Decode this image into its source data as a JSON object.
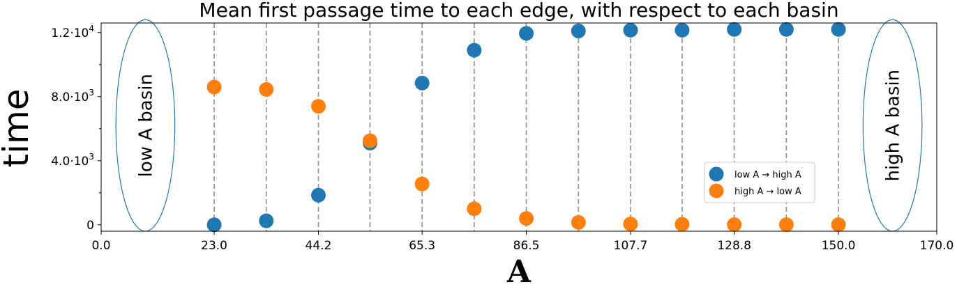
{
  "chart_data": {
    "type": "scatter",
    "title": "Mean first passage time to each edge, with respect to each basin",
    "xlabel": "A",
    "ylabel": "time",
    "xlim": [
      0,
      170
    ],
    "ylim": [
      -400,
      12600
    ],
    "x_ticks": [
      {
        "value": 0,
        "label": "0.0"
      },
      {
        "value": 23.0,
        "label": "23.0"
      },
      {
        "value": 44.2,
        "label": "44.2"
      },
      {
        "value": 65.3,
        "label": "65.3"
      },
      {
        "value": 86.5,
        "label": "86.5"
      },
      {
        "value": 107.7,
        "label": "107.7"
      },
      {
        "value": 128.8,
        "label": "128.8"
      },
      {
        "value": 150.0,
        "label": "150.0"
      },
      {
        "value": 170.0,
        "label": "170.0"
      }
    ],
    "y_ticks": [
      {
        "value": 0,
        "base": "0",
        "exp": ""
      },
      {
        "value": 4000,
        "base": "4.0·10",
        "exp": "3"
      },
      {
        "value": 8000,
        "base": "8.0·10",
        "exp": "3"
      },
      {
        "value": 12000,
        "base": "1.2·10",
        "exp": "4"
      }
    ],
    "y_minor_ticks": [
      2000,
      6000,
      10000
    ],
    "vlines": [
      23.0,
      33.6,
      44.2,
      54.7,
      65.3,
      75.9,
      86.5,
      97.1,
      107.7,
      118.2,
      128.8,
      139.4,
      150.0
    ],
    "basins": [
      {
        "label": "low A basin",
        "center_x": 9,
        "half_width_x": 6,
        "center_y": 6200,
        "half_height_y": 6600
      },
      {
        "label": "high A basin",
        "center_x": 161,
        "half_width_x": 6,
        "center_y": 6200,
        "half_height_y": 6600
      }
    ],
    "legend_position": "center-right",
    "series": [
      {
        "name": "low A → high A",
        "color": "#1f77b4",
        "x": [
          23.0,
          33.6,
          44.2,
          54.7,
          65.3,
          75.9,
          86.5,
          97.1,
          107.7,
          118.2,
          128.8,
          139.4,
          150.0
        ],
        "y": [
          0,
          250,
          1850,
          5100,
          8850,
          10900,
          11950,
          12100,
          12150,
          12150,
          12200,
          12200,
          12200
        ]
      },
      {
        "name": "high A → low A",
        "color": "#ff7f0e",
        "x": [
          23.0,
          33.6,
          44.2,
          54.7,
          65.3,
          75.9,
          86.5,
          97.1,
          107.7,
          118.2,
          128.8,
          139.4,
          150.0
        ],
        "y": [
          8600,
          8450,
          7400,
          5250,
          2550,
          1000,
          400,
          150,
          50,
          30,
          10,
          10,
          10
        ]
      }
    ]
  }
}
